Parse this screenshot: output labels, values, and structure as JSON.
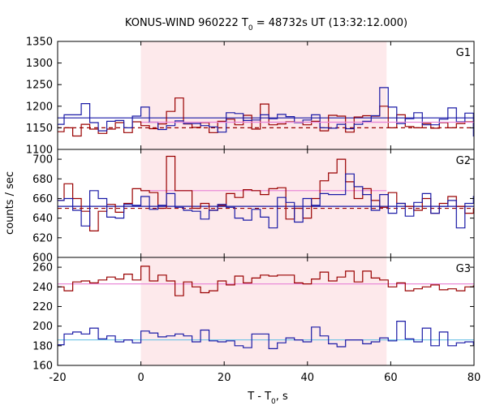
{
  "title": {
    "prefix": "KONUS-WIND 960222 T",
    "sub": "0",
    "suffix": " = 48732s UT (13:32:12.000)"
  },
  "xlabel": {
    "prefix": "T - T",
    "sub": "0",
    "suffix": ", s"
  },
  "ylabel": "counts / sec",
  "colors": {
    "red": "#990000",
    "blue": "#1a1aa6",
    "pink": "#e98ad8",
    "cyan": "#6fc3e6",
    "shade": "#fde9eb"
  },
  "chart_data": {
    "type": "line",
    "x_range": [
      -20,
      80
    ],
    "x_ticks": [
      -20,
      0,
      20,
      40,
      60,
      80
    ],
    "bin_width": 2.048,
    "x_start": -20.48,
    "shaded_interval": [
      0,
      59
    ],
    "panels": [
      {
        "name": "G1",
        "ylim": [
          1100,
          1350
        ],
        "yticks": [
          1100,
          1150,
          1200,
          1250,
          1300,
          1350
        ],
        "hlines": [
          {
            "color": "blue",
            "value": 1173,
            "style": "solid"
          },
          {
            "color": "red",
            "value": 1150,
            "style": "dashed"
          },
          {
            "color": "pink",
            "value": 1163,
            "style": "solid",
            "x_range": [
              0,
              59
            ]
          }
        ],
        "series": [
          {
            "color": "red",
            "style": "step",
            "values": [
              1141,
              1150,
              1131,
              1158,
              1147,
              1137,
              1147,
              1162,
              1139,
              1164,
              1155,
              1148,
              1159,
              1188,
              1219,
              1159,
              1151,
              1162,
              1139,
              1165,
              1170,
              1157,
              1179,
              1147,
              1205,
              1157,
              1159,
              1164,
              1163,
              1157,
              1165,
              1143,
              1179,
              1177,
              1140,
              1175,
              1178,
              1177,
              1200,
              1150,
              1180,
              1153,
              1150,
              1160,
              1149,
              1162,
              1150,
              1160,
              1164,
              1153
            ]
          },
          {
            "color": "blue",
            "style": "step",
            "values": [
              1158,
              1180,
              1180,
              1206,
              1162,
              1143,
              1165,
              1167,
              1150,
              1177,
              1198,
              1163,
              1146,
              1155,
              1166,
              1160,
              1160,
              1155,
              1152,
              1140,
              1185,
              1183,
              1167,
              1168,
              1180,
              1171,
              1181,
              1176,
              1162,
              1168,
              1180,
              1150,
              1149,
              1158,
              1148,
              1158,
              1165,
              1178,
              1243,
              1198,
              1160,
              1171,
              1185,
              1157,
              1157,
              1170,
              1196,
              1164,
              1184,
              1131
            ]
          },
          {
            "color": "pink",
            "style": "step",
            "values": [
              null,
              null,
              null,
              null,
              null,
              null,
              null,
              null,
              null,
              null,
              null,
              1163,
              1163,
              1163,
              1163,
              1163,
              1163,
              1163,
              1163,
              1163,
              1163,
              1163,
              1163,
              1163,
              1163,
              1163,
              1163,
              1163,
              1163,
              1163,
              1163,
              1163,
              1163,
              1163,
              1163,
              1163,
              1163,
              1163,
              1163,
              1163,
              1163,
              1163,
              1163,
              1163,
              1163,
              1163,
              1163,
              1163,
              1163,
              1163
            ]
          }
        ]
      },
      {
        "name": "G2",
        "ylim": [
          600,
          710
        ],
        "yticks": [
          600,
          620,
          640,
          660,
          680,
          700
        ],
        "hlines": [
          {
            "color": "blue",
            "value": 652,
            "style": "solid"
          },
          {
            "color": "red",
            "value": 650,
            "style": "dashed"
          },
          {
            "color": "pink",
            "value": 668,
            "style": "solid",
            "x_range": [
              0,
              59
            ]
          }
        ],
        "series": [
          {
            "color": "red",
            "style": "step",
            "values": [
              658,
              675,
              660,
              647,
              627,
              647,
              654,
              646,
              655,
              670,
              668,
              666,
              650,
              703,
              668,
              668,
              650,
              655,
              648,
              653,
              665,
              661,
              669,
              668,
              664,
              670,
              671,
              639,
              650,
              640,
              660,
              678,
              686,
              700,
              677,
              660,
              670,
              658,
              651,
              666,
              655,
              652,
              648,
              660,
              645,
              655,
              662,
              652,
              645,
              650
            ]
          },
          {
            "color": "blue",
            "style": "step",
            "values": [
              658,
              660,
              648,
              632,
              668,
              660,
              641,
              640,
              654,
              653,
              662,
              649,
              653,
              665,
              651,
              648,
              647,
              639,
              648,
              654,
              651,
              640,
              638,
              649,
              641,
              630,
              661,
              656,
              636,
              660,
              653,
              665,
              664,
              664,
              685,
              672,
              664,
              648,
              664,
              645,
              655,
              642,
              656,
              665,
              645,
              652,
              658,
              630,
              655,
              662
            ]
          }
        ]
      },
      {
        "name": "G3",
        "ylim": [
          160,
          270
        ],
        "yticks": [
          160,
          180,
          200,
          220,
          240,
          260
        ],
        "hlines": [
          {
            "color": "pink",
            "value": 243,
            "style": "solid"
          },
          {
            "color": "cyan",
            "value": 186,
            "style": "solid"
          }
        ],
        "series": [
          {
            "color": "red",
            "style": "step",
            "values": [
              240,
              236,
              245,
              246,
              244,
              247,
              250,
              248,
              253,
              247,
              261,
              246,
              252,
              246,
              231,
              245,
              240,
              234,
              236,
              246,
              242,
              251,
              244,
              249,
              252,
              251,
              252,
              252,
              244,
              243,
              248,
              255,
              246,
              250,
              256,
              245,
              256,
              249,
              247,
              240,
              244,
              236,
              238,
              240,
              242,
              237,
              238,
              236,
              240,
              241
            ]
          },
          {
            "color": "blue",
            "style": "step",
            "values": [
              181,
              192,
              194,
              192,
              198,
              187,
              190,
              184,
              186,
              183,
              195,
              193,
              189,
              190,
              192,
              190,
              184,
              196,
              185,
              184,
              185,
              180,
              178,
              192,
              192,
              177,
              183,
              188,
              186,
              184,
              199,
              190,
              182,
              179,
              186,
              186,
              182,
              184,
              188,
              185,
              205,
              187,
              184,
              198,
              180,
              194,
              180,
              183,
              184,
              181
            ]
          }
        ]
      }
    ]
  }
}
